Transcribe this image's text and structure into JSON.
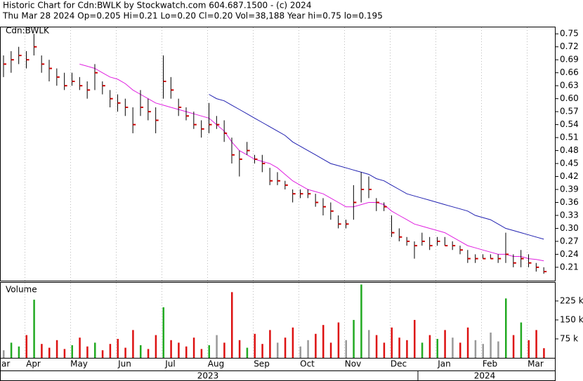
{
  "header": {
    "line1": "Historic Chart for Cdn:BWLK by Stockwatch.com 604.687.1500 - (c) 2024",
    "line2": "Thu Mar 28 2024   Op=0.205   Hi=0.21   Lo=0.20   Cl=0.20   Vol=38,188   Year hi=0.75   lo=0.195"
  },
  "chart_data": {
    "type": "ohlc",
    "symbol_label": "Cdn:BWLK",
    "volume_label": "Volume",
    "years": [
      "2023",
      "2024"
    ],
    "categories": [
      "ar",
      null,
      null,
      "Apr",
      null,
      null,
      null,
      null,
      null,
      "May",
      null,
      null,
      null,
      null,
      null,
      "Jun",
      null,
      null,
      null,
      null,
      null,
      "Jul",
      null,
      null,
      null,
      null,
      null,
      "Aug",
      null,
      null,
      null,
      null,
      null,
      "Sep",
      null,
      null,
      null,
      null,
      null,
      "Oct",
      null,
      null,
      null,
      null,
      null,
      "Nov",
      null,
      null,
      null,
      null,
      null,
      "Dec",
      null,
      null,
      null,
      null,
      null,
      "Jan",
      null,
      null,
      null,
      null,
      null,
      "Feb",
      null,
      null,
      null,
      null,
      null,
      "Mar",
      null,
      null
    ],
    "high": [
      0.7,
      0.71,
      0.72,
      0.71,
      0.75,
      0.7,
      0.69,
      0.67,
      0.66,
      0.66,
      0.65,
      0.64,
      0.68,
      0.64,
      0.62,
      0.61,
      0.6,
      0.58,
      0.62,
      0.6,
      0.58,
      0.7,
      0.65,
      0.6,
      0.58,
      0.57,
      0.55,
      0.59,
      0.56,
      0.55,
      0.51,
      0.48,
      0.5,
      0.47,
      0.47,
      0.44,
      0.43,
      0.41,
      0.39,
      0.39,
      0.39,
      0.38,
      0.37,
      0.36,
      0.33,
      0.32,
      0.4,
      0.43,
      0.42,
      0.37,
      0.36,
      0.33,
      0.3,
      0.28,
      0.27,
      0.29,
      0.28,
      0.28,
      0.28,
      0.27,
      0.26,
      0.25,
      0.24,
      0.24,
      0.24,
      0.24,
      0.29,
      0.24,
      0.25,
      0.24,
      0.22,
      0.21
    ],
    "low": [
      0.65,
      0.66,
      0.68,
      0.67,
      0.7,
      0.66,
      0.64,
      0.63,
      0.62,
      0.63,
      0.62,
      0.6,
      0.62,
      0.61,
      0.58,
      0.57,
      0.56,
      0.52,
      0.56,
      0.55,
      0.52,
      0.6,
      0.6,
      0.56,
      0.55,
      0.53,
      0.51,
      0.52,
      0.53,
      0.5,
      0.45,
      0.42,
      0.47,
      0.45,
      0.43,
      0.4,
      0.4,
      0.39,
      0.36,
      0.37,
      0.37,
      0.35,
      0.33,
      0.32,
      0.3,
      0.3,
      0.32,
      0.36,
      0.37,
      0.34,
      0.34,
      0.28,
      0.27,
      0.26,
      0.23,
      0.26,
      0.25,
      0.26,
      0.26,
      0.25,
      0.24,
      0.22,
      0.22,
      0.23,
      0.23,
      0.22,
      0.22,
      0.21,
      0.21,
      0.21,
      0.2,
      0.195
    ],
    "close": [
      0.68,
      0.69,
      0.7,
      0.69,
      0.72,
      0.68,
      0.67,
      0.65,
      0.63,
      0.64,
      0.63,
      0.62,
      0.66,
      0.63,
      0.6,
      0.59,
      0.58,
      0.54,
      0.58,
      0.57,
      0.55,
      0.64,
      0.62,
      0.58,
      0.56,
      0.54,
      0.53,
      0.54,
      0.54,
      0.52,
      0.47,
      0.46,
      0.48,
      0.46,
      0.45,
      0.41,
      0.41,
      0.4,
      0.38,
      0.38,
      0.38,
      0.36,
      0.35,
      0.34,
      0.31,
      0.31,
      0.36,
      0.39,
      0.39,
      0.36,
      0.35,
      0.29,
      0.28,
      0.27,
      0.26,
      0.27,
      0.26,
      0.27,
      0.26,
      0.26,
      0.25,
      0.23,
      0.23,
      0.23,
      0.23,
      0.23,
      0.24,
      0.22,
      0.23,
      0.22,
      0.21,
      0.2
    ],
    "series": [
      {
        "name": "MA short",
        "color": "#e020e0",
        "values": [
          null,
          null,
          null,
          null,
          null,
          null,
          null,
          null,
          null,
          null,
          0.68,
          0.675,
          0.67,
          0.66,
          0.65,
          0.645,
          0.635,
          0.62,
          0.61,
          0.6,
          0.59,
          0.585,
          0.58,
          0.575,
          0.57,
          0.565,
          0.56,
          0.555,
          0.54,
          0.525,
          0.5,
          0.48,
          0.47,
          0.46,
          0.455,
          0.45,
          0.44,
          0.425,
          0.41,
          0.4,
          0.39,
          0.385,
          0.38,
          0.37,
          0.36,
          0.35,
          0.35,
          0.355,
          0.36,
          0.36,
          0.355,
          0.34,
          0.33,
          0.32,
          0.31,
          0.305,
          0.3,
          0.295,
          0.29,
          0.28,
          0.27,
          0.26,
          0.255,
          0.25,
          0.245,
          0.24,
          0.24,
          0.235,
          0.235,
          0.23,
          0.228,
          0.225
        ]
      },
      {
        "name": "MA long",
        "color": "#2020b0",
        "values": [
          null,
          null,
          null,
          null,
          null,
          null,
          null,
          null,
          null,
          null,
          null,
          null,
          null,
          null,
          null,
          null,
          null,
          null,
          null,
          null,
          null,
          null,
          null,
          null,
          null,
          null,
          null,
          0.61,
          0.6,
          0.595,
          0.585,
          0.575,
          0.565,
          0.555,
          0.545,
          0.535,
          0.525,
          0.515,
          0.5,
          0.49,
          0.48,
          0.47,
          0.46,
          0.45,
          0.445,
          0.44,
          0.435,
          0.43,
          0.425,
          0.415,
          0.41,
          0.4,
          0.39,
          0.38,
          0.375,
          0.37,
          0.365,
          0.36,
          0.355,
          0.35,
          0.345,
          0.34,
          0.33,
          0.325,
          0.32,
          0.31,
          0.3,
          0.295,
          0.29,
          0.285,
          0.28,
          0.275
        ]
      }
    ],
    "volume": [
      30000,
      60000,
      45000,
      90000,
      230000,
      55000,
      40000,
      70000,
      35000,
      50000,
      80000,
      45000,
      60000,
      30000,
      55000,
      75000,
      40000,
      110000,
      50000,
      35000,
      90000,
      200000,
      70000,
      60000,
      45000,
      80000,
      35000,
      50000,
      90000,
      60000,
      260000,
      70000,
      40000,
      95000,
      55000,
      110000,
      60000,
      80000,
      120000,
      45000,
      70000,
      95000,
      130000,
      60000,
      140000,
      70000,
      150000,
      290000,
      110000,
      90000,
      60000,
      120000,
      80000,
      70000,
      150000,
      60000,
      90000,
      75000,
      110000,
      80000,
      60000,
      120000,
      70000,
      55000,
      100000,
      65000,
      235000,
      90000,
      140000,
      70000,
      110000,
      38188
    ],
    "ylim": [
      0.179,
      0.765
    ],
    "yticks": [
      0.21,
      0.24,
      0.27,
      {
        "value": 0.3,
        "label": "0.30"
      },
      0.33,
      0.36,
      0.39,
      0.42,
      0.45,
      0.48,
      0.51,
      0.54,
      0.57,
      {
        "value": 0.6,
        "label": "0.60"
      },
      0.63,
      0.66,
      0.69,
      0.72,
      0.75
    ],
    "vlim": [
      0,
      297000
    ],
    "vticks": [
      {
        "value": 75000,
        "label": "75 k"
      },
      {
        "value": 150000,
        "label": "150 k"
      },
      {
        "value": 225000,
        "label": "225 k"
      }
    ]
  }
}
